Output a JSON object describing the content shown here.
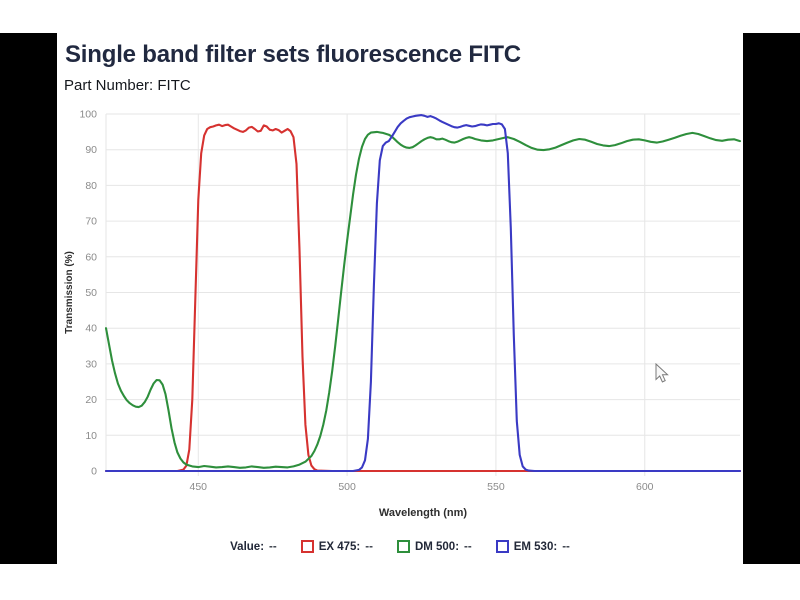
{
  "header": {
    "title": "Single band filter sets fluorescence FITC",
    "part_number_label": "Part Number:",
    "part_number_value": "FITC"
  },
  "chart_data": {
    "type": "line",
    "title": "Single band filter sets fluorescence FITC",
    "xlabel": "Wavelength (nm)",
    "ylabel": "Transmission (%)",
    "xlim": [
      419,
      632
    ],
    "ylim": [
      0,
      100
    ],
    "x_ticks": [
      450,
      500,
      550,
      600
    ],
    "y_ticks": [
      0,
      10,
      20,
      30,
      40,
      50,
      60,
      70,
      80,
      90,
      100
    ],
    "grid": true,
    "legend_position": "bottom",
    "series": [
      {
        "name": "EX 475",
        "color": "#d63230",
        "points": [
          [
            419,
            0
          ],
          [
            443,
            0
          ],
          [
            445,
            0.4
          ],
          [
            446,
            1.5
          ],
          [
            447,
            6
          ],
          [
            448,
            20
          ],
          [
            449,
            48
          ],
          [
            450,
            76
          ],
          [
            451,
            89
          ],
          [
            452,
            94
          ],
          [
            453,
            95.8
          ],
          [
            454,
            96.3
          ],
          [
            455,
            96.5
          ],
          [
            456,
            96.8
          ],
          [
            457,
            97
          ],
          [
            458,
            96.6
          ],
          [
            459,
            96.9
          ],
          [
            460,
            97
          ],
          [
            461,
            96.5
          ],
          [
            462,
            96
          ],
          [
            463,
            95.6
          ],
          [
            464,
            95.2
          ],
          [
            465,
            95
          ],
          [
            466,
            95.4
          ],
          [
            467,
            96.2
          ],
          [
            468,
            96.4
          ],
          [
            469,
            95.8
          ],
          [
            470,
            95.1
          ],
          [
            471,
            95.3
          ],
          [
            472,
            96.8
          ],
          [
            473,
            96.5
          ],
          [
            474,
            95.6
          ],
          [
            475,
            95.4
          ],
          [
            476,
            95.8
          ],
          [
            477,
            95.5
          ],
          [
            478,
            94.8
          ],
          [
            479,
            95.3
          ],
          [
            480,
            95.8
          ],
          [
            481,
            95.2
          ],
          [
            482,
            93.5
          ],
          [
            483,
            86
          ],
          [
            484,
            62
          ],
          [
            485,
            32
          ],
          [
            486,
            13
          ],
          [
            487,
            4.5
          ],
          [
            488,
            1.5
          ],
          [
            489,
            0.5
          ],
          [
            490,
            0.1
          ],
          [
            495,
            0
          ],
          [
            632,
            0
          ]
        ]
      },
      {
        "name": "DM 500",
        "color": "#2e8f3c",
        "points": [
          [
            419,
            40
          ],
          [
            420,
            35.5
          ],
          [
            421,
            31
          ],
          [
            422,
            27.5
          ],
          [
            423,
            24.5
          ],
          [
            424,
            22.5
          ],
          [
            425,
            21
          ],
          [
            426,
            19.8
          ],
          [
            427,
            19
          ],
          [
            428,
            18.4
          ],
          [
            429,
            18
          ],
          [
            430,
            17.9
          ],
          [
            431,
            18.3
          ],
          [
            432,
            19.3
          ],
          [
            433,
            20.8
          ],
          [
            434,
            22.8
          ],
          [
            435,
            24.5
          ],
          [
            436,
            25.5
          ],
          [
            437,
            25.4
          ],
          [
            438,
            24.2
          ],
          [
            439,
            21.5
          ],
          [
            440,
            17
          ],
          [
            441,
            12
          ],
          [
            442,
            8
          ],
          [
            443,
            5.2
          ],
          [
            444,
            3.5
          ],
          [
            445,
            2.4
          ],
          [
            446,
            1.8
          ],
          [
            448,
            1.3
          ],
          [
            450,
            1.1
          ],
          [
            452,
            1.4
          ],
          [
            454,
            1.2
          ],
          [
            456,
            1
          ],
          [
            458,
            1.1
          ],
          [
            460,
            1.3
          ],
          [
            462,
            1.1
          ],
          [
            464,
            0.9
          ],
          [
            466,
            1
          ],
          [
            468,
            1.3
          ],
          [
            470,
            1.1
          ],
          [
            472,
            0.9
          ],
          [
            474,
            1
          ],
          [
            476,
            1.2
          ],
          [
            478,
            1.1
          ],
          [
            480,
            1
          ],
          [
            482,
            1.3
          ],
          [
            484,
            1.8
          ],
          [
            486,
            2.6
          ],
          [
            488,
            4.2
          ],
          [
            489,
            5.6
          ],
          [
            490,
            7.4
          ],
          [
            491,
            9.8
          ],
          [
            492,
            13
          ],
          [
            493,
            17
          ],
          [
            494,
            22
          ],
          [
            495,
            28
          ],
          [
            496,
            35
          ],
          [
            497,
            42.5
          ],
          [
            498,
            50
          ],
          [
            499,
            57.5
          ],
          [
            500,
            64.5
          ],
          [
            501,
            71
          ],
          [
            502,
            77.5
          ],
          [
            503,
            83
          ],
          [
            504,
            87.5
          ],
          [
            505,
            90.8
          ],
          [
            506,
            93
          ],
          [
            507,
            94.2
          ],
          [
            508,
            94.8
          ],
          [
            510,
            95
          ],
          [
            512,
            94.7
          ],
          [
            514,
            94.2
          ],
          [
            515,
            93.7
          ],
          [
            516,
            92.9
          ],
          [
            517,
            92.1
          ],
          [
            518,
            91.4
          ],
          [
            519,
            90.9
          ],
          [
            520,
            90.6
          ],
          [
            521,
            90.5
          ],
          [
            522,
            90.7
          ],
          [
            523,
            91.2
          ],
          [
            524,
            91.8
          ],
          [
            525,
            92.4
          ],
          [
            526,
            92.9
          ],
          [
            527,
            93.3
          ],
          [
            528,
            93.5
          ],
          [
            529,
            93.3
          ],
          [
            530,
            92.9
          ],
          [
            531,
            92.9
          ],
          [
            532,
            93.1
          ],
          [
            533,
            92.8
          ],
          [
            534,
            92.4
          ],
          [
            535,
            92.1
          ],
          [
            536,
            92
          ],
          [
            537,
            92.2
          ],
          [
            538,
            92.6
          ],
          [
            539,
            93
          ],
          [
            540,
            93.3
          ],
          [
            541,
            93.5
          ],
          [
            542,
            93.3
          ],
          [
            543,
            93
          ],
          [
            545,
            92.6
          ],
          [
            547,
            92.4
          ],
          [
            549,
            92.6
          ],
          [
            551,
            93
          ],
          [
            553,
            93.4
          ],
          [
            554,
            93.5
          ],
          [
            556,
            93
          ],
          [
            558,
            92.2
          ],
          [
            560,
            91.3
          ],
          [
            562,
            90.5
          ],
          [
            564,
            90
          ],
          [
            566,
            89.9
          ],
          [
            568,
            90.1
          ],
          [
            570,
            90.6
          ],
          [
            572,
            91.3
          ],
          [
            574,
            92
          ],
          [
            576,
            92.6
          ],
          [
            578,
            93
          ],
          [
            580,
            92.8
          ],
          [
            582,
            92.2
          ],
          [
            584,
            91.6
          ],
          [
            586,
            91.2
          ],
          [
            588,
            91
          ],
          [
            590,
            91.3
          ],
          [
            592,
            91.8
          ],
          [
            594,
            92.4
          ],
          [
            596,
            92.8
          ],
          [
            598,
            92.9
          ],
          [
            600,
            92.6
          ],
          [
            602,
            92.2
          ],
          [
            604,
            92
          ],
          [
            606,
            92.3
          ],
          [
            608,
            92.8
          ],
          [
            610,
            93.3
          ],
          [
            612,
            93.9
          ],
          [
            614,
            94.4
          ],
          [
            616,
            94.7
          ],
          [
            618,
            94.4
          ],
          [
            620,
            93.8
          ],
          [
            622,
            93.2
          ],
          [
            624,
            92.7
          ],
          [
            626,
            92.5
          ],
          [
            628,
            92.8
          ],
          [
            630,
            92.9
          ],
          [
            632,
            92.4
          ]
        ]
      },
      {
        "name": "EM 530",
        "color": "#3a3ac4",
        "points": [
          [
            419,
            0
          ],
          [
            498,
            0
          ],
          [
            502,
            0
          ],
          [
            504,
            0.3
          ],
          [
            505,
            1
          ],
          [
            506,
            3
          ],
          [
            507,
            9
          ],
          [
            508,
            25
          ],
          [
            509,
            52
          ],
          [
            510,
            75
          ],
          [
            511,
            87
          ],
          [
            512,
            91
          ],
          [
            513,
            92
          ],
          [
            514,
            92.4
          ],
          [
            515,
            93.6
          ],
          [
            516,
            95
          ],
          [
            517,
            96.4
          ],
          [
            518,
            97.4
          ],
          [
            519,
            98.1
          ],
          [
            520,
            98.7
          ],
          [
            521,
            99.1
          ],
          [
            522,
            99.3
          ],
          [
            523,
            99.5
          ],
          [
            524,
            99.6
          ],
          [
            525,
            99.7
          ],
          [
            526,
            99.5
          ],
          [
            527,
            99.2
          ],
          [
            528,
            99.4
          ],
          [
            529,
            99.1
          ],
          [
            530,
            98.7
          ],
          [
            531,
            98.2
          ],
          [
            532,
            97.8
          ],
          [
            533,
            97.4
          ],
          [
            534,
            97
          ],
          [
            535,
            96.6
          ],
          [
            536,
            96.3
          ],
          [
            537,
            96.2
          ],
          [
            538,
            96.4
          ],
          [
            539,
            96.7
          ],
          [
            540,
            96.9
          ],
          [
            541,
            96.7
          ],
          [
            542,
            96.5
          ],
          [
            543,
            96.6
          ],
          [
            544,
            96.9
          ],
          [
            545,
            97.1
          ],
          [
            546,
            97
          ],
          [
            547,
            96.8
          ],
          [
            548,
            97
          ],
          [
            549,
            97.2
          ],
          [
            550,
            97.2
          ],
          [
            551,
            97.4
          ],
          [
            552,
            97.1
          ],
          [
            553,
            95.8
          ],
          [
            554,
            89
          ],
          [
            555,
            68
          ],
          [
            556,
            38
          ],
          [
            557,
            14
          ],
          [
            558,
            4.5
          ],
          [
            559,
            1.3
          ],
          [
            560,
            0.4
          ],
          [
            561,
            0.1
          ],
          [
            563,
            0
          ],
          [
            632,
            0
          ]
        ]
      }
    ]
  },
  "legend": {
    "value_label": "Value:",
    "value_text": "--",
    "items": [
      {
        "label": "EX 475:",
        "value": "--",
        "color": "#d63230"
      },
      {
        "label": "DM 500:",
        "value": "--",
        "color": "#2e8f3c"
      },
      {
        "label": "EM 530:",
        "value": "--",
        "color": "#3a3ac4"
      }
    ]
  },
  "colors": {
    "title": "#212940",
    "tick_label": "#8b8b8b",
    "axis_label": "#2e2e2e",
    "gridline": "#e6e6e6",
    "letterbox": "#000000",
    "background": "#ffffff"
  }
}
